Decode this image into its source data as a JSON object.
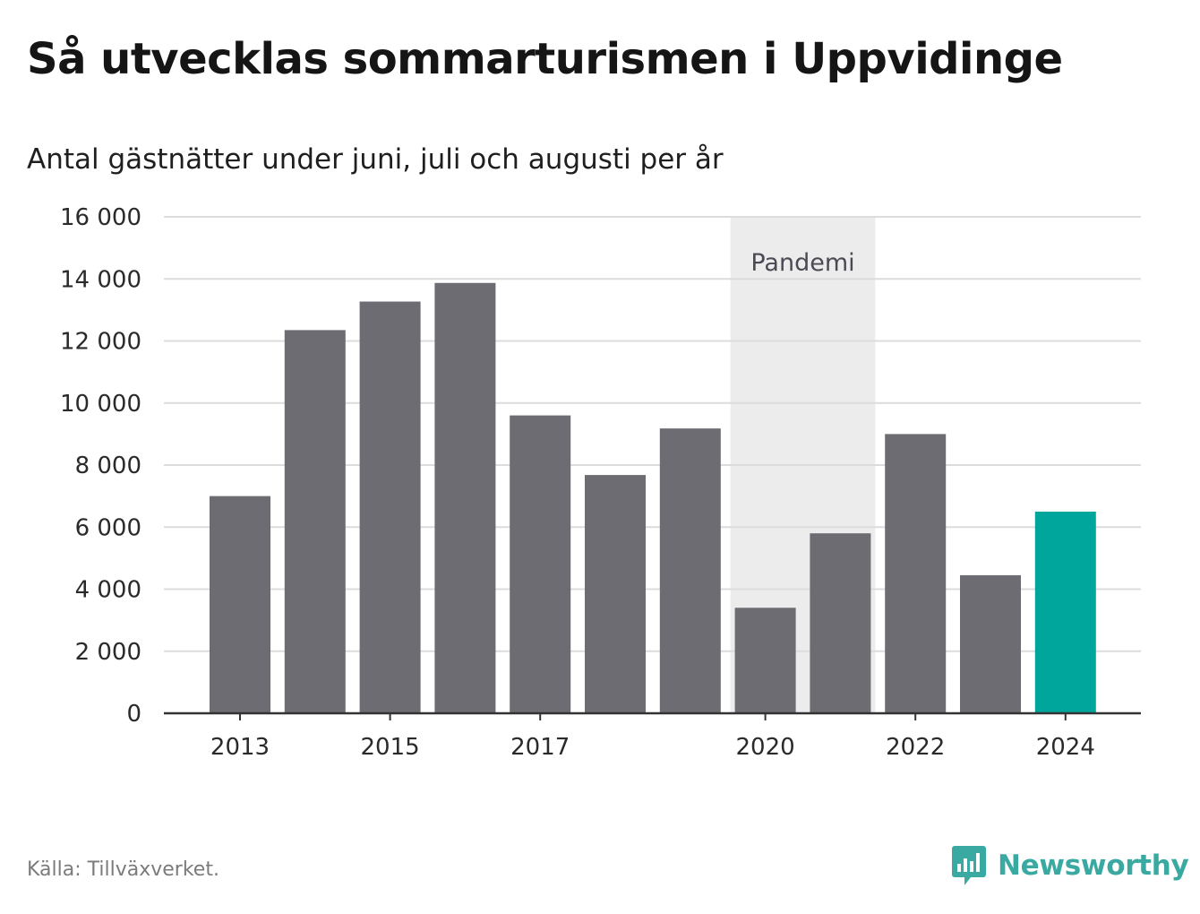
{
  "title": "Så utvecklas sommarturismen i Uppvidinge",
  "subtitle": "Antal gästnätter under juni, juli och augusti per år",
  "source": "Källa: Tillväxverket.",
  "brand": "Newsworthy",
  "colors": {
    "bar": "#6d6c72",
    "highlight": "#00a69c",
    "band": "#ececec",
    "grid": "#dcdcdc",
    "axis": "#333333",
    "brand": "#3aa9a2"
  },
  "chart_data": {
    "type": "bar",
    "title": "Så utvecklas sommarturismen i Uppvidinge",
    "subtitle": "Antal gästnätter under juni, juli och augusti per år",
    "xlabel": "",
    "ylabel": "",
    "categories": [
      "2013",
      "2014",
      "2015",
      "2016",
      "2017",
      "2018",
      "2019",
      "2020",
      "2021",
      "2022",
      "2023",
      "2024"
    ],
    "values": [
      7000,
      12350,
      13270,
      13870,
      9600,
      7680,
      9180,
      3400,
      5800,
      9000,
      4450,
      6500
    ],
    "highlight_category": "2024",
    "x_tick_labels": [
      "2013",
      "2015",
      "2017",
      "2020",
      "2022",
      "2024"
    ],
    "y_tick_labels": [
      "0",
      "2 000",
      "4 000",
      "6 000",
      "8 000",
      "10 000",
      "12 000",
      "14 000",
      "16 000"
    ],
    "ylim": [
      0,
      16000
    ],
    "y_ticks": [
      0,
      2000,
      4000,
      6000,
      8000,
      10000,
      12000,
      14000,
      16000
    ],
    "grid": true,
    "annotation": {
      "label": "Pandemi",
      "from": "2020",
      "to": "2021"
    }
  }
}
